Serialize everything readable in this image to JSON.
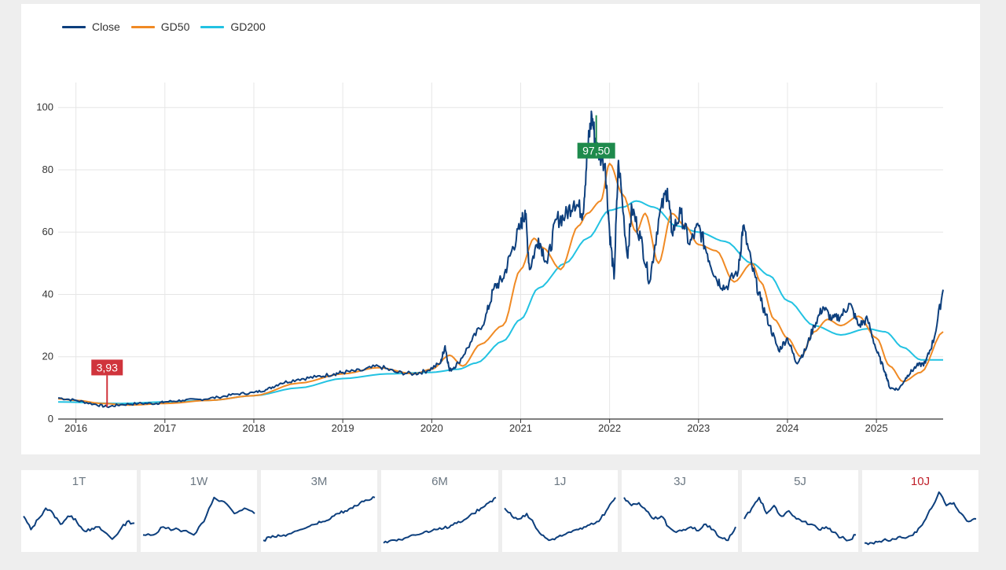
{
  "legend": [
    {
      "name": "Close",
      "color": "#0d3f7d"
    },
    {
      "name": "GD50",
      "color": "#f08a24"
    },
    {
      "name": "GD200",
      "color": "#22c2e2"
    }
  ],
  "chart_data": {
    "type": "line",
    "xlim": [
      2015.8,
      2025.75
    ],
    "ylim": [
      0,
      108
    ],
    "x_ticks": [
      2016,
      2017,
      2018,
      2019,
      2020,
      2021,
      2022,
      2023,
      2024,
      2025
    ],
    "y_ticks": [
      0,
      20,
      40,
      60,
      80,
      100
    ],
    "grid": true,
    "legend_position": "top-left",
    "markers": [
      {
        "label": "3,93",
        "x": 2016.35,
        "y": 3.93,
        "kind": "min",
        "color": "#d0343c"
      },
      {
        "label": "97,50",
        "x": 2021.85,
        "y": 97.5,
        "kind": "max",
        "color": "#1e8a4c"
      }
    ],
    "series": [
      {
        "name": "Close",
        "color": "#0d3f7d",
        "x": [
          2015.8,
          2016.0,
          2016.2,
          2016.35,
          2016.5,
          2016.7,
          2016.9,
          2017.0,
          2017.2,
          2017.4,
          2017.6,
          2017.8,
          2018.0,
          2018.15,
          2018.3,
          2018.5,
          2018.7,
          2018.9,
          2019.0,
          2019.2,
          2019.4,
          2019.6,
          2019.8,
          2019.95,
          2020.1,
          2020.15,
          2020.2,
          2020.3,
          2020.45,
          2020.6,
          2020.7,
          2020.8,
          2020.9,
          2021.0,
          2021.05,
          2021.1,
          2021.2,
          2021.3,
          2021.4,
          2021.5,
          2021.6,
          2021.7,
          2021.75,
          2021.8,
          2021.85,
          2021.95,
          2022.0,
          2022.05,
          2022.1,
          2022.2,
          2022.25,
          2022.35,
          2022.45,
          2022.55,
          2022.65,
          2022.7,
          2022.8,
          2022.9,
          2023.0,
          2023.1,
          2023.2,
          2023.3,
          2023.45,
          2023.5,
          2023.6,
          2023.7,
          2023.8,
          2023.9,
          2024.0,
          2024.1,
          2024.2,
          2024.3,
          2024.4,
          2024.5,
          2024.6,
          2024.7,
          2024.8,
          2024.9,
          2025.0,
          2025.1,
          2025.15,
          2025.25,
          2025.35,
          2025.45,
          2025.55,
          2025.65,
          2025.75
        ],
        "y": [
          6.8,
          6.0,
          4.8,
          3.93,
          4.6,
          5.0,
          5.0,
          5.5,
          6.0,
          6.3,
          7.0,
          8.0,
          8.5,
          9.5,
          11.5,
          12.8,
          13.5,
          14.5,
          15.0,
          15.5,
          17.0,
          15.0,
          14.5,
          15.5,
          18.0,
          23.5,
          15.5,
          18.0,
          25.0,
          32.0,
          42.0,
          45.0,
          54.0,
          62.0,
          67.0,
          48.0,
          58.0,
          50.0,
          64.0,
          65.0,
          70.0,
          66.0,
          86.0,
          97.5,
          87.0,
          82.0,
          60.0,
          45.0,
          83.0,
          52.0,
          68.0,
          58.0,
          44.0,
          64.0,
          74.0,
          60.0,
          66.0,
          56.0,
          62.0,
          53.0,
          45.0,
          42.0,
          48.0,
          62.0,
          49.0,
          38.0,
          30.0,
          22.0,
          26.0,
          18.0,
          22.0,
          30.0,
          36.0,
          32.0,
          33.0,
          37.0,
          30.0,
          32.0,
          22.0,
          15.0,
          10.0,
          9.5,
          14.0,
          17.0,
          18.0,
          26.0,
          41.5
        ]
      },
      {
        "name": "GD50",
        "color": "#f08a24",
        "x": [
          2015.8,
          2016.0,
          2016.3,
          2016.6,
          2017.0,
          2017.5,
          2018.0,
          2018.5,
          2019.0,
          2019.4,
          2019.8,
          2020.0,
          2020.2,
          2020.35,
          2020.55,
          2020.8,
          2021.0,
          2021.15,
          2021.25,
          2021.45,
          2021.65,
          2021.75,
          2021.9,
          2022.0,
          2022.15,
          2022.3,
          2022.4,
          2022.55,
          2022.7,
          2022.85,
          2023.0,
          2023.2,
          2023.4,
          2023.6,
          2023.7,
          2023.85,
          2024.0,
          2024.15,
          2024.3,
          2024.45,
          2024.6,
          2024.8,
          2025.0,
          2025.15,
          2025.3,
          2025.5,
          2025.75
        ],
        "y": [
          6.5,
          6.0,
          5.0,
          4.5,
          5.0,
          6.0,
          7.5,
          11.5,
          14.5,
          16.5,
          14.5,
          16.0,
          20.5,
          17.0,
          24.0,
          30.0,
          48.0,
          58.0,
          55.0,
          48.0,
          62.0,
          66.0,
          70.0,
          82.0,
          72.0,
          60.0,
          66.0,
          50.0,
          66.0,
          62.0,
          56.0,
          54.0,
          44.0,
          50.0,
          44.0,
          32.0,
          26.0,
          20.0,
          28.0,
          32.0,
          30.0,
          33.0,
          26.0,
          17.0,
          12.0,
          15.0,
          28.0
        ]
      },
      {
        "name": "GD200",
        "color": "#22c2e2",
        "x": [
          2015.8,
          2016.5,
          2017.0,
          2017.5,
          2018.0,
          2018.5,
          2019.0,
          2019.5,
          2020.0,
          2020.3,
          2020.5,
          2020.8,
          2021.0,
          2021.2,
          2021.5,
          2021.75,
          2022.0,
          2022.15,
          2022.3,
          2022.5,
          2022.75,
          2023.0,
          2023.3,
          2023.6,
          2023.8,
          2024.0,
          2024.3,
          2024.6,
          2024.9,
          2025.1,
          2025.3,
          2025.5,
          2025.75
        ],
        "y": [
          5.5,
          5.0,
          5.5,
          6.0,
          7.5,
          10.0,
          13.0,
          14.5,
          15.0,
          16.0,
          18.0,
          25.0,
          32.0,
          42.0,
          50.0,
          58.0,
          67.0,
          68.0,
          70.0,
          68.0,
          62.0,
          60.0,
          57.0,
          50.0,
          46.0,
          38.0,
          30.0,
          27.0,
          29.0,
          28.0,
          23.0,
          19.0,
          19.0
        ]
      }
    ]
  },
  "ranges": [
    {
      "label": "1T",
      "active": false,
      "values": [
        0.55,
        0.3,
        0.5,
        0.7,
        0.6,
        0.4,
        0.55,
        0.5,
        0.3,
        0.28,
        0.35,
        0.25,
        0.12,
        0.28,
        0.45,
        0.42
      ]
    },
    {
      "label": "1W",
      "active": false,
      "values": [
        0.2,
        0.2,
        0.35,
        0.3,
        0.28,
        0.2,
        0.45,
        0.9,
        0.82,
        0.6,
        0.7,
        0.6
      ]
    },
    {
      "label": "3M",
      "active": false,
      "values": [
        0.1,
        0.15,
        0.2,
        0.18,
        0.25,
        0.3,
        0.35,
        0.4,
        0.45,
        0.5,
        0.6,
        0.65,
        0.7,
        0.8,
        0.85,
        0.9
      ]
    },
    {
      "label": "6M",
      "active": false,
      "values": [
        0.05,
        0.1,
        0.12,
        0.15,
        0.2,
        0.22,
        0.25,
        0.3,
        0.32,
        0.38,
        0.45,
        0.5,
        0.6,
        0.7,
        0.8,
        0.9
      ]
    },
    {
      "label": "1J",
      "active": false,
      "values": [
        0.7,
        0.55,
        0.5,
        0.6,
        0.4,
        0.2,
        0.1,
        0.15,
        0.2,
        0.25,
        0.3,
        0.35,
        0.4,
        0.5,
        0.7,
        0.9
      ]
    },
    {
      "label": "3J",
      "active": false,
      "values": [
        0.9,
        0.75,
        0.8,
        0.65,
        0.5,
        0.55,
        0.35,
        0.25,
        0.3,
        0.35,
        0.28,
        0.4,
        0.3,
        0.15,
        0.1,
        0.35
      ]
    },
    {
      "label": "5J",
      "active": false,
      "values": [
        0.5,
        0.7,
        0.9,
        0.6,
        0.75,
        0.55,
        0.65,
        0.5,
        0.45,
        0.4,
        0.3,
        0.35,
        0.25,
        0.15,
        0.1,
        0.2
      ]
    },
    {
      "label": "10J",
      "active": true,
      "values": [
        0.05,
        0.05,
        0.08,
        0.1,
        0.12,
        0.15,
        0.18,
        0.25,
        0.45,
        0.7,
        1.0,
        0.75,
        0.8,
        0.6,
        0.45,
        0.5
      ]
    }
  ]
}
